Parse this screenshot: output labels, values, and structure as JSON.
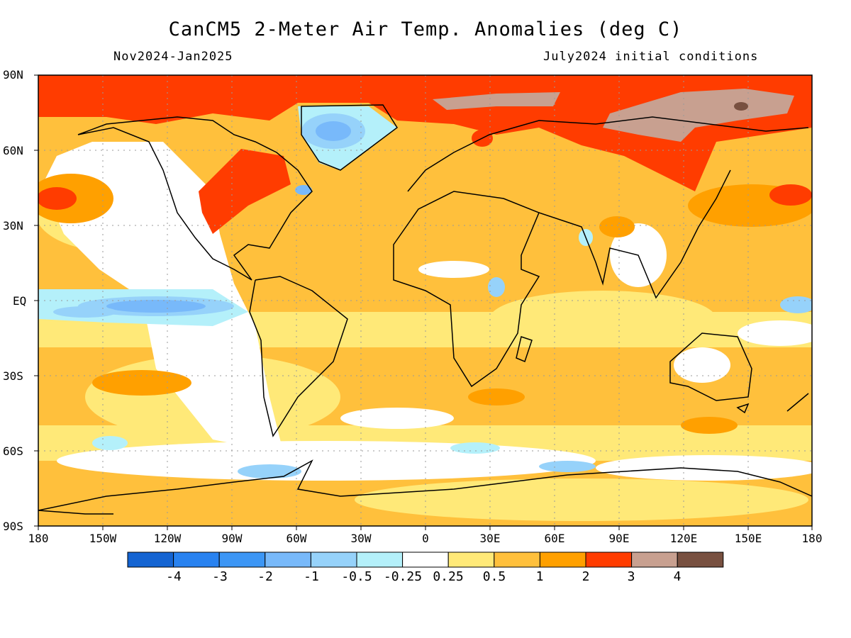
{
  "title": "CanCM5 2-Meter Air Temp. Anomalies (deg C)",
  "period": "Nov2024-Jan2025",
  "init": "July2024 initial conditions",
  "lat_labels": [
    "90N",
    "60N",
    "30N",
    "EQ",
    "30S",
    "60S",
    "90S"
  ],
  "lon_labels": [
    "180",
    "150W",
    "120W",
    "90W",
    "60W",
    "30W",
    "0",
    "30E",
    "60E",
    "90E",
    "120E",
    "150E",
    "180"
  ],
  "colorbar": {
    "colors": [
      "#1464d2",
      "#2882f0",
      "#3c96f5",
      "#78b9fa",
      "#96d2fa",
      "#b4f0fa",
      "#ffffff",
      "#ffe978",
      "#ffc03c",
      "#ffa000",
      "#ff3c00",
      "#c8a090",
      "#785040"
    ],
    "labels": [
      "-4",
      "-3",
      "-2",
      "-1",
      "-0.5",
      "-0.25",
      "0.25",
      "0.5",
      "1",
      "2",
      "3",
      "4"
    ]
  }
}
